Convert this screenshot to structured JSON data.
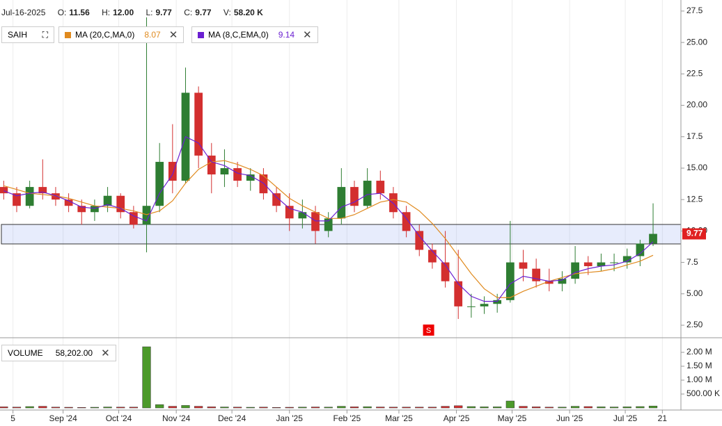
{
  "header": {
    "date": "Jul-16-2025",
    "open": {
      "label": "O:",
      "value": "11.56"
    },
    "high": {
      "label": "H:",
      "value": "12.00"
    },
    "low": {
      "label": "L:",
      "value": "9.77"
    },
    "close": {
      "label": "C:",
      "value": "9.77"
    },
    "volume": {
      "label": "V:",
      "value": "58.20 K"
    }
  },
  "chart_data": [
    {
      "type": "candlestick",
      "symbol": "SAIH",
      "x": [
        "2024-07-29",
        "2024-08-05",
        "2024-08-12",
        "2024-08-19",
        "2024-08-26",
        "2024-09-02",
        "2024-09-09",
        "2024-09-16",
        "2024-09-23",
        "2024-09-30",
        "2024-10-07",
        "2024-10-14",
        "2024-10-21",
        "2024-10-28",
        "2024-11-04",
        "2024-11-11",
        "2024-11-18",
        "2024-11-25",
        "2024-12-02",
        "2024-12-09",
        "2024-12-16",
        "2024-12-23",
        "2024-12-30",
        "2025-01-06",
        "2025-01-13",
        "2025-01-20",
        "2025-01-27",
        "2025-02-03",
        "2025-02-10",
        "2025-02-17",
        "2025-02-24",
        "2025-03-03",
        "2025-03-10",
        "2025-03-17",
        "2025-03-24",
        "2025-03-31",
        "2025-04-07",
        "2025-04-14",
        "2025-04-21",
        "2025-04-28",
        "2025-05-05",
        "2025-05-12",
        "2025-05-19",
        "2025-05-26",
        "2025-06-02",
        "2025-06-09",
        "2025-06-16",
        "2025-06-23",
        "2025-06-30",
        "2025-07-07",
        "2025-07-14"
      ],
      "open": [
        13.5,
        13.0,
        12.0,
        13.5,
        13.0,
        12.5,
        12.0,
        11.5,
        12.0,
        12.8,
        11.5,
        10.5,
        12.0,
        15.5,
        14.0,
        21.0,
        16.0,
        14.5,
        15.0,
        14.0,
        14.5,
        13.0,
        12.0,
        11.0,
        11.5,
        10.0,
        11.0,
        13.5,
        12.0,
        14.0,
        13.0,
        11.5,
        10.0,
        8.5,
        7.5,
        6.0,
        4.0,
        4.0,
        4.2,
        4.5,
        7.5,
        7.0,
        6.0,
        5.8,
        6.2,
        7.5,
        7.2,
        7.5,
        7.5,
        8.0,
        9.0
      ],
      "high": [
        14.0,
        13.5,
        14.0,
        15.7,
        13.5,
        13.0,
        12.5,
        12.5,
        13.5,
        13.0,
        12.0,
        27.0,
        17.0,
        18.5,
        23.0,
        21.5,
        17.0,
        16.5,
        15.5,
        15.0,
        15.0,
        13.5,
        13.0,
        12.5,
        12.0,
        11.5,
        15.0,
        14.0,
        15.0,
        14.8,
        13.5,
        12.0,
        10.5,
        9.0,
        10.0,
        8.5,
        5.0,
        4.8,
        5.0,
        10.8,
        8.5,
        7.8,
        7.0,
        6.8,
        8.8,
        8.0,
        8.2,
        8.2,
        8.6,
        9.3,
        12.2
      ],
      "low": [
        12.5,
        11.5,
        11.8,
        12.5,
        12.0,
        11.5,
        10.5,
        10.8,
        11.5,
        11.0,
        10.2,
        8.3,
        11.5,
        13.0,
        13.8,
        15.0,
        13.0,
        13.5,
        13.5,
        13.2,
        12.5,
        11.5,
        10.0,
        10.2,
        9.0,
        9.5,
        10.5,
        11.5,
        11.8,
        12.5,
        11.0,
        9.5,
        8.0,
        7.0,
        5.5,
        3.0,
        3.1,
        3.4,
        3.5,
        4.3,
        6.0,
        5.5,
        5.2,
        5.2,
        5.8,
        6.5,
        6.8,
        6.8,
        7.0,
        7.2,
        8.8
      ],
      "close": [
        13.0,
        12.0,
        13.5,
        13.0,
        12.5,
        12.0,
        11.5,
        12.0,
        12.8,
        11.5,
        10.5,
        12.0,
        15.5,
        14.0,
        21.0,
        16.0,
        14.5,
        15.0,
        14.0,
        14.5,
        13.0,
        12.0,
        11.0,
        11.5,
        10.0,
        11.0,
        13.5,
        12.0,
        14.0,
        13.0,
        11.5,
        10.0,
        8.5,
        7.5,
        6.0,
        4.0,
        4.0,
        4.2,
        4.5,
        7.5,
        7.0,
        6.0,
        5.8,
        6.2,
        7.5,
        7.2,
        7.5,
        7.5,
        8.0,
        9.0,
        9.77
      ],
      "up_color": "#2e7d32",
      "down_color": "#d32f2f",
      "series": [
        {
          "name": "MA (20,C,MA,0)",
          "color": "#e08a1e",
          "value_label": "8.07",
          "values": [
            13.6,
            13.3,
            13.0,
            12.9,
            12.8,
            12.6,
            12.3,
            12.0,
            11.9,
            11.8,
            11.6,
            11.3,
            11.6,
            12.4,
            13.8,
            14.9,
            15.5,
            15.6,
            15.3,
            14.9,
            14.4,
            13.5,
            12.6,
            12.0,
            11.5,
            11.0,
            11.0,
            11.3,
            11.8,
            12.3,
            12.5,
            12.3,
            11.6,
            10.6,
            9.4,
            8.0,
            6.6,
            5.4,
            4.7,
            4.7,
            5.2,
            5.6,
            6.0,
            6.3,
            6.6,
            6.7,
            6.8,
            7.0,
            7.3,
            7.6,
            8.07
          ]
        },
        {
          "name": "MA (8,C,EMA,0)",
          "color": "#6a1fd1",
          "value_label": "9.14",
          "values": [
            13.2,
            12.8,
            13.0,
            13.1,
            12.8,
            12.4,
            11.9,
            11.8,
            12.1,
            11.8,
            11.2,
            10.8,
            13.0,
            14.5,
            17.5,
            17.0,
            15.5,
            15.2,
            14.6,
            14.4,
            13.8,
            12.7,
            11.8,
            11.5,
            10.8,
            10.8,
            11.9,
            12.3,
            12.9,
            13.0,
            12.2,
            11.0,
            9.6,
            8.4,
            7.3,
            5.8,
            4.8,
            4.4,
            4.4,
            5.8,
            6.4,
            6.2,
            6.0,
            6.1,
            6.7,
            7.0,
            7.2,
            7.3,
            7.6,
            8.2,
            9.14
          ]
        }
      ],
      "band": [
        8.97,
        10.52
      ],
      "marker": {
        "date": "2025-03-17",
        "label": "S"
      },
      "xlim": [
        "2024-07-29",
        "2025-07-31"
      ],
      "xticks": [
        {
          "value": "2024-08-05",
          "label": "5"
        },
        {
          "value": "2024-09-01",
          "label": "Sep '24"
        },
        {
          "value": "2024-10-01",
          "label": "Oct '24"
        },
        {
          "value": "2024-11-01",
          "label": "Nov '24"
        },
        {
          "value": "2024-12-01",
          "label": "Dec '24"
        },
        {
          "value": "2025-01-01",
          "label": "Jan '25"
        },
        {
          "value": "2025-02-01",
          "label": "Feb '25"
        },
        {
          "value": "2025-03-01",
          "label": "Mar '25"
        },
        {
          "value": "2025-04-01",
          "label": "Apr '25"
        },
        {
          "value": "2025-05-01",
          "label": "May '25"
        },
        {
          "value": "2025-06-01",
          "label": "Jun '25"
        },
        {
          "value": "2025-07-01",
          "label": "Jul '25"
        },
        {
          "value": "2025-07-21",
          "label": "21"
        }
      ],
      "ylim": [
        1.56,
        28.38
      ],
      "yticks": [
        {
          "value": 2.5,
          "label": "2.50"
        },
        {
          "value": 5,
          "label": "5.00"
        },
        7.5,
        {
          "value": 10,
          "label": "10.00"
        },
        12.5,
        {
          "value": 15,
          "label": "15.00"
        },
        17.5,
        {
          "value": 20,
          "label": "20.00"
        },
        22.5,
        {
          "value": 25,
          "label": "25.00"
        },
        27.5
      ]
    },
    {
      "type": "bar",
      "title": "VOLUME",
      "value_label": "58,202.00",
      "values": [
        40000,
        30000,
        50000,
        60000,
        30000,
        25000,
        20000,
        25000,
        35000,
        30000,
        30000,
        2200000,
        120000,
        60000,
        90000,
        60000,
        40000,
        35000,
        30000,
        25000,
        30000,
        20000,
        25000,
        30000,
        35000,
        30000,
        60000,
        40000,
        45000,
        35000,
        30000,
        30000,
        30000,
        30000,
        60000,
        80000,
        50000,
        40000,
        40000,
        250000,
        60000,
        40000,
        30000,
        30000,
        60000,
        50000,
        40000,
        35000,
        40000,
        50000,
        70000
      ],
      "ylim": [
        0,
        2500000
      ],
      "yticks": [
        {
          "value": 500000,
          "label": "500.00 K"
        },
        {
          "value": 1000000,
          "label": "1.00 M"
        },
        {
          "value": 1500000,
          "label": "1.50 M"
        },
        {
          "value": 2000000,
          "label": "2.00 M"
        }
      ]
    }
  ]
}
